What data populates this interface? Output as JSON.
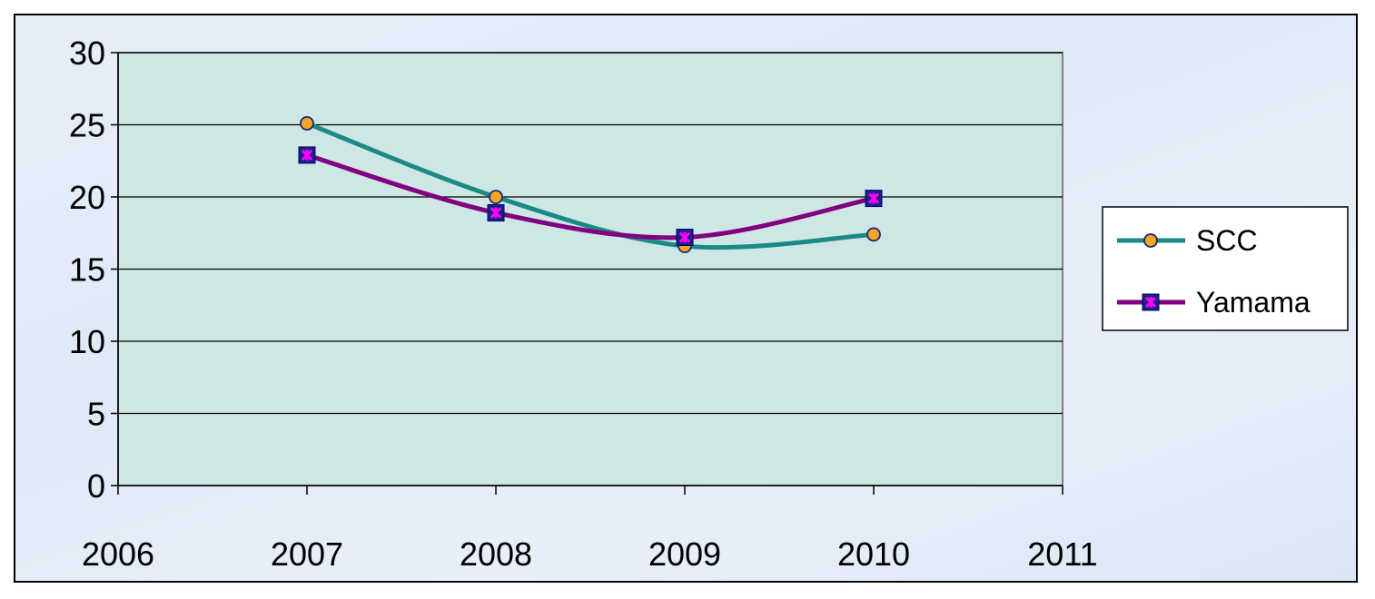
{
  "chart_data": {
    "type": "line",
    "x": [
      2007,
      2008,
      2009,
      2010
    ],
    "x_ticks": [
      "2006",
      "2007",
      "2008",
      "2009",
      "2010",
      "2011"
    ],
    "y_ticks": [
      "0",
      "5",
      "10",
      "15",
      "20",
      "25",
      "30"
    ],
    "xlim": [
      2006,
      2011
    ],
    "ylim": [
      0,
      30
    ],
    "grid": "horizontal",
    "legend_position": "right",
    "series": [
      {
        "name": "SCC",
        "values": [
          25.1,
          20.0,
          16.6,
          17.4
        ],
        "color": "#1b8a85",
        "marker": "circle",
        "marker_color": "#f5a623"
      },
      {
        "name": "Yamama",
        "values": [
          22.9,
          18.9,
          17.2,
          19.9
        ],
        "color": "#800080",
        "marker": "square-x",
        "marker_color": "#ff00ff"
      }
    ],
    "plot_background": "#cfe7e4",
    "background": "#e4ecf8"
  }
}
